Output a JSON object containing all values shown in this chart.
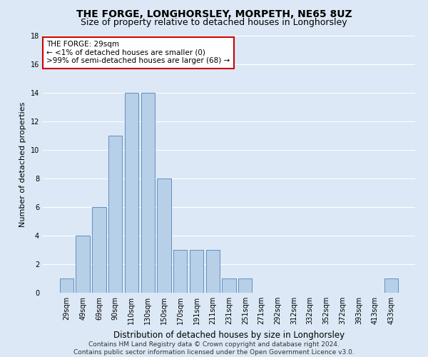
{
  "title": "THE FORGE, LONGHORSLEY, MORPETH, NE65 8UZ",
  "subtitle": "Size of property relative to detached houses in Longhorsley",
  "xlabel": "Distribution of detached houses by size in Longhorsley",
  "ylabel": "Number of detached properties",
  "categories": [
    "29sqm",
    "49sqm",
    "69sqm",
    "90sqm",
    "110sqm",
    "130sqm",
    "150sqm",
    "170sqm",
    "191sqm",
    "211sqm",
    "231sqm",
    "251sqm",
    "271sqm",
    "292sqm",
    "312sqm",
    "332sqm",
    "352sqm",
    "372sqm",
    "393sqm",
    "413sqm",
    "433sqm"
  ],
  "values": [
    1,
    4,
    6,
    11,
    14,
    14,
    8,
    3,
    3,
    3,
    1,
    1,
    0,
    0,
    0,
    0,
    0,
    0,
    0,
    0,
    1
  ],
  "bar_color": "#b8cfe8",
  "bar_edge_color": "#6090c0",
  "background_color": "#dce8f5",
  "grid_color": "#ffffff",
  "annotation_text": "THE FORGE: 29sqm\n← <1% of detached houses are smaller (0)\n>99% of semi-detached houses are larger (68) →",
  "annotation_box_facecolor": "#ffffff",
  "annotation_box_edgecolor": "#cc0000",
  "footer_text": "Contains HM Land Registry data © Crown copyright and database right 2024.\nContains public sector information licensed under the Open Government Licence v3.0.",
  "ylim": [
    0,
    18
  ],
  "yticks": [
    0,
    2,
    4,
    6,
    8,
    10,
    12,
    14,
    16,
    18
  ],
  "title_fontsize": 10,
  "subtitle_fontsize": 9,
  "xlabel_fontsize": 8.5,
  "ylabel_fontsize": 8,
  "tick_fontsize": 7,
  "annotation_fontsize": 7.5,
  "footer_fontsize": 6.5
}
